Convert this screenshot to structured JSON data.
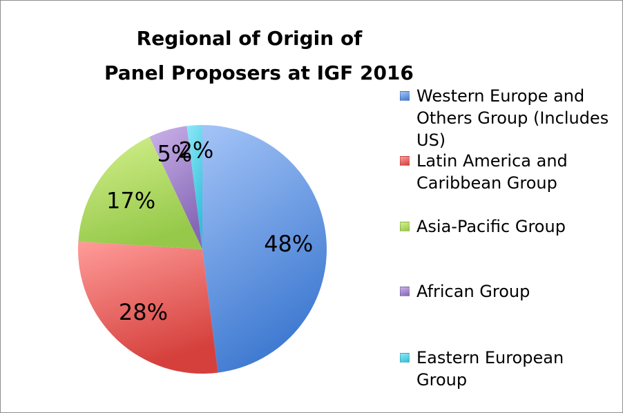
{
  "chart_data": {
    "type": "pie",
    "title_lines": [
      "Regional of Origin of",
      "Panel Proposers at IGF 2016"
    ],
    "slices": [
      {
        "label": "Western Europe and Others Group (Includes US)",
        "value": 48,
        "value_label": "48%",
        "color_light": "#a4c4f7",
        "color_dark": "#3f7ad1"
      },
      {
        "label": "Latin America and Caribbean Group",
        "value": 28,
        "value_label": "28%",
        "color_light": "#ff9c9a",
        "color_dark": "#d5403c"
      },
      {
        "label": "Asia-Pacific Group",
        "value": 17,
        "value_label": "17%",
        "color_light": "#d4f08d",
        "color_dark": "#96c94a"
      },
      {
        "label": "African Group",
        "value": 5,
        "value_label": "5%",
        "color_light": "#cbb3ea",
        "color_dark": "#8667b6"
      },
      {
        "label": "Eastern European Group",
        "value": 2,
        "value_label": "2%",
        "color_light": "#8ee8f7",
        "color_dark": "#33bfd9"
      }
    ],
    "legend_position": "right"
  }
}
